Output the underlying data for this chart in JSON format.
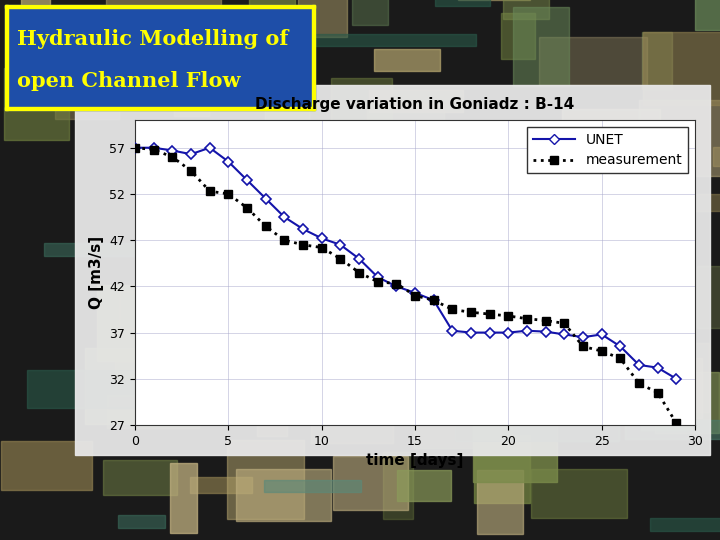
{
  "title": "Discharge variation in Goniadz : B-14",
  "xlabel": "time [days]",
  "ylabel": "Q [m3/s]",
  "xlim": [
    0,
    30
  ],
  "ylim": [
    27,
    60
  ],
  "yticks": [
    27,
    32,
    37,
    42,
    47,
    52,
    57
  ],
  "xticks": [
    0,
    5,
    10,
    15,
    20,
    25,
    30
  ],
  "unet_x": [
    0,
    1,
    2,
    3,
    4,
    5,
    6,
    7,
    8,
    9,
    10,
    11,
    12,
    13,
    14,
    15,
    16,
    17,
    18,
    19,
    20,
    21,
    22,
    23,
    24,
    25,
    26,
    27,
    28,
    29
  ],
  "unet_y": [
    57,
    57,
    56.7,
    56.3,
    57.0,
    55.5,
    53.5,
    51.5,
    49.5,
    48.2,
    47.2,
    46.5,
    45.0,
    43.0,
    42.0,
    41.3,
    40.5,
    37.2,
    37.0,
    37.0,
    37.0,
    37.2,
    37.1,
    36.8,
    36.5,
    36.8,
    35.5,
    33.5,
    33.2,
    32.0
  ],
  "meas_x": [
    0,
    1,
    2,
    3,
    4,
    5,
    6,
    7,
    8,
    9,
    10,
    11,
    12,
    13,
    14,
    15,
    16,
    17,
    18,
    19,
    20,
    21,
    22,
    23,
    24,
    25,
    26,
    27,
    28,
    29
  ],
  "meas_y": [
    57,
    56.8,
    56.0,
    54.5,
    52.3,
    52.0,
    50.5,
    48.5,
    47.0,
    46.5,
    46.2,
    45.0,
    43.5,
    42.5,
    42.3,
    41.0,
    40.5,
    39.5,
    39.2,
    39.0,
    38.8,
    38.5,
    38.3,
    38.0,
    35.5,
    35.0,
    34.2,
    31.5,
    30.5,
    27.2
  ],
  "unet_color": "#1414AA",
  "meas_color": "#000000",
  "chart_bg": "#F0F0F0",
  "chart_inner_bg": "#FFFFFF",
  "header_bg": "#1E4EA8",
  "header_text_color": "#FFFF00",
  "header_border_color": "#FFFF00",
  "panel_bg": "#D8D8D8",
  "bg_aerial_colors": [
    "#8B9B5A",
    "#7A8A4A",
    "#B8A870",
    "#6B8A5A",
    "#A09060",
    "#708040",
    "#908050",
    "#C0B080"
  ]
}
